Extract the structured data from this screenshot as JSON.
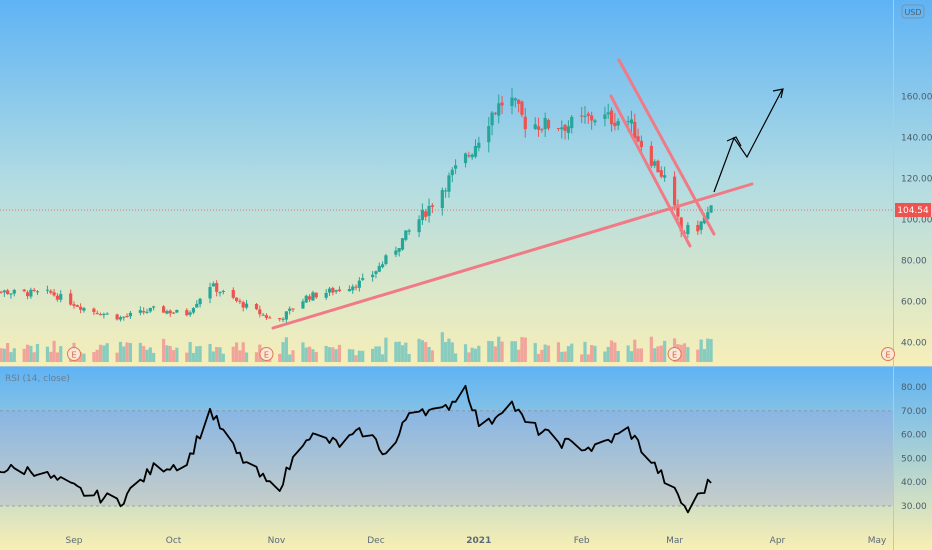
{
  "price_panel": {
    "currency_badge": "USD",
    "price_ticks": [
      "160.00",
      "140.00",
      "120.00",
      "100.00",
      "80.00",
      "60.00",
      "40.00"
    ],
    "last_price_label": "104.54",
    "earnings_marker_label": "E"
  },
  "rsi_panel": {
    "legend": "RSI (14, close)",
    "rsi_ticks": [
      "80.00",
      "70.00",
      "60.00",
      "50.00",
      "40.00",
      "30.00"
    ]
  },
  "x_axis": {
    "labels": [
      "Sep",
      "Oct",
      "Nov",
      "Dec",
      "2021",
      "Feb",
      "Mar",
      "Apr",
      "May"
    ]
  },
  "colors": {
    "up": "#26a69a",
    "down": "#ef5350",
    "trendline": "#f07a85",
    "rsi_line": "#000000",
    "price_line_badge": "#ef5350"
  },
  "chart_data": [
    {
      "type": "candlestick",
      "y_axis": "price (USD)",
      "ylim": [
        35,
        175
      ],
      "x_range": [
        "2020-08-03",
        "2021-05-05"
      ],
      "closes_approx": [
        [
          "2020-08-03",
          66
        ],
        [
          "2020-08-15",
          64
        ],
        [
          "2020-08-25",
          64
        ],
        [
          "2020-09-05",
          56
        ],
        [
          "2020-09-15",
          52
        ],
        [
          "2020-09-25",
          56
        ],
        [
          "2020-10-05",
          54
        ],
        [
          "2020-10-12",
          68
        ],
        [
          "2020-10-20",
          60
        ],
        [
          "2020-11-01",
          50
        ],
        [
          "2020-11-10",
          62
        ],
        [
          "2020-11-20",
          66
        ],
        [
          "2020-11-28",
          70
        ],
        [
          "2020-12-05",
          82
        ],
        [
          "2020-12-12",
          96
        ],
        [
          "2020-12-18",
          108
        ],
        [
          "2020-12-24",
          122
        ],
        [
          "2020-12-30",
          134
        ],
        [
          "2021-01-05",
          152
        ],
        [
          "2021-01-10",
          160
        ],
        [
          "2021-01-15",
          147
        ],
        [
          "2021-01-22",
          146
        ],
        [
          "2021-01-28",
          146
        ],
        [
          "2021-02-05",
          150
        ],
        [
          "2021-02-15",
          148
        ],
        [
          "2021-02-20",
          134
        ],
        [
          "2021-02-26",
          120
        ],
        [
          "2021-03-03",
          94
        ],
        [
          "2021-03-08",
          96
        ],
        [
          "2021-03-12",
          104.54
        ]
      ],
      "last_price": 104.54,
      "volume": "bars at the bottom of the price pane",
      "annotations": [
        "ascending support trendline from early Nov 2020 across the March 2021 price",
        "descending channel from mid Feb 2021 to mid Mar 2021",
        "arrow projecting a move up into late March 2021"
      ],
      "earnings_markers": [
        "2020-08-03",
        "2020-09-01",
        "2020-10-29",
        "2021-03-01",
        "2021-05-05"
      ]
    },
    {
      "type": "line",
      "series": [
        {
          "name": "RSI (14, close)",
          "values_approx": [
            [
              "2020-08-03",
              46
            ],
            [
              "2020-08-20",
              45
            ],
            [
              "2020-09-05",
              35
            ],
            [
              "2020-09-15",
              32
            ],
            [
              "2020-09-25",
              46
            ],
            [
              "2020-10-05",
              48
            ],
            [
              "2020-10-12",
              70
            ],
            [
              "2020-10-20",
              52
            ],
            [
              "2020-11-01",
              36
            ],
            [
              "2020-11-10",
              60
            ],
            [
              "2020-11-20",
              56
            ],
            [
              "2020-11-28",
              62
            ],
            [
              "2020-12-05",
              50
            ],
            [
              "2020-12-12",
              73
            ],
            [
              "2020-12-20",
              68
            ],
            [
              "2020-12-28",
              80
            ],
            [
              "2021-01-02",
              61
            ],
            [
              "2021-01-10",
              75
            ],
            [
              "2021-01-15",
              65
            ],
            [
              "2021-01-25",
              57
            ],
            [
              "2021-02-05",
              54
            ],
            [
              "2021-02-15",
              62
            ],
            [
              "2021-02-25",
              43
            ],
            [
              "2021-03-05",
              28
            ],
            [
              "2021-03-12",
              41
            ]
          ]
        }
      ],
      "ylim": [
        23,
        85
      ],
      "bands": [
        30,
        70
      ]
    }
  ]
}
